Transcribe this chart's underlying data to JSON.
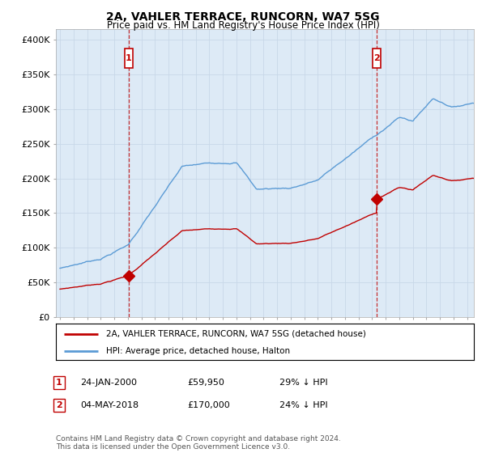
{
  "title": "2A, VAHLER TERRACE, RUNCORN, WA7 5SG",
  "subtitle": "Price paid vs. HM Land Registry's House Price Index (HPI)",
  "ylabel_ticks": [
    "£0",
    "£50K",
    "£100K",
    "£150K",
    "£200K",
    "£250K",
    "£300K",
    "£350K",
    "£400K"
  ],
  "ytick_values": [
    0,
    50000,
    100000,
    150000,
    200000,
    250000,
    300000,
    350000,
    400000
  ],
  "ylim": [
    0,
    415000
  ],
  "xlim_start": 1994.7,
  "xlim_end": 2025.5,
  "hpi_color": "#5b9bd5",
  "price_color": "#c00000",
  "chart_bg": "#ddeaf6",
  "sale1_x": 2000.07,
  "sale1_y": 59950,
  "sale2_x": 2018.34,
  "sale2_y": 170000,
  "legend_line1": "2A, VAHLER TERRACE, RUNCORN, WA7 5SG (detached house)",
  "legend_line2": "HPI: Average price, detached house, Halton",
  "ann1_date": "24-JAN-2000",
  "ann1_price": "£59,950",
  "ann1_hpi": "29% ↓ HPI",
  "ann2_date": "04-MAY-2018",
  "ann2_price": "£170,000",
  "ann2_hpi": "24% ↓ HPI",
  "footer": "Contains HM Land Registry data © Crown copyright and database right 2024.\nThis data is licensed under the Open Government Licence v3.0.",
  "bg_color": "#ffffff",
  "grid_color": "#c8d8e8"
}
